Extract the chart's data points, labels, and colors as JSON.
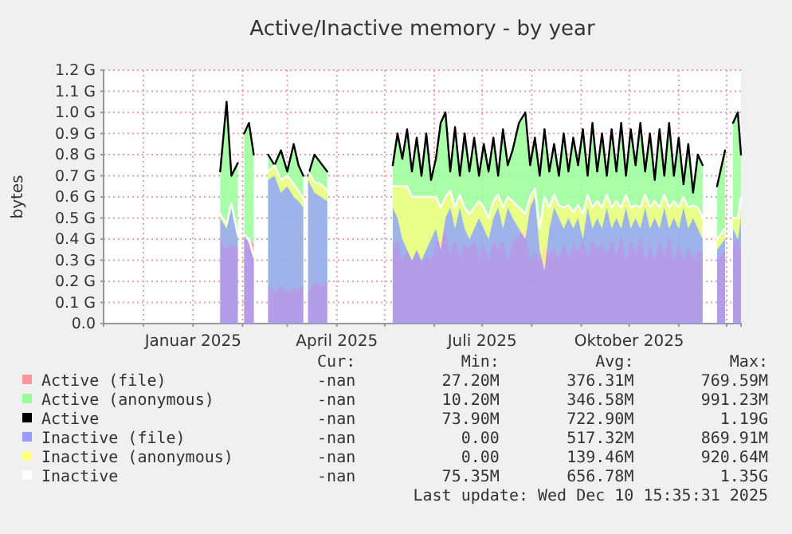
{
  "chart_data": [
    {
      "type": "area",
      "title": "Active/Inactive memory - by year",
      "ylabel": "bytes",
      "stacked": true,
      "grid": true,
      "legend": "bottom",
      "xlim": [
        "2024-11-06",
        "2025-12-10"
      ],
      "xticks": [
        {
          "value": "2024-12-01",
          "label": null
        },
        {
          "value": "2025-01-01",
          "label": "Januar 2025"
        },
        {
          "value": "2025-02-01",
          "label": null
        },
        {
          "value": "2025-03-01",
          "label": null
        },
        {
          "value": "2025-04-01",
          "label": "April 2025"
        },
        {
          "value": "2025-05-01",
          "label": null
        },
        {
          "value": "2025-06-01",
          "label": null
        },
        {
          "value": "2025-07-01",
          "label": "Juli 2025"
        },
        {
          "value": "2025-08-01",
          "label": null
        },
        {
          "value": "2025-09-01",
          "label": null
        },
        {
          "value": "2025-10-01",
          "label": "Oktober 2025"
        },
        {
          "value": "2025-11-01",
          "label": null
        },
        {
          "value": "2025-12-01",
          "label": null
        }
      ],
      "ylim": [
        0,
        1.2
      ],
      "yticks": [
        {
          "value": 0,
          "label": "0.0"
        },
        {
          "value": 0.1,
          "label": "0.1 G"
        },
        {
          "value": 0.2,
          "label": "0.2 G"
        },
        {
          "value": 0.3,
          "label": "0.3 G"
        },
        {
          "value": 0.4,
          "label": "0.4 G"
        },
        {
          "value": 0.5,
          "label": "0.5 G"
        },
        {
          "value": 0.6,
          "label": "0.6 G"
        },
        {
          "value": 0.7,
          "label": "0.7 G"
        },
        {
          "value": 0.8,
          "label": "0.8 G"
        },
        {
          "value": 0.9,
          "label": "0.9 G"
        },
        {
          "value": 1.0,
          "label": "1.0 G"
        },
        {
          "value": 1.1,
          "label": "1.1 G"
        },
        {
          "value": 1.2,
          "label": "1.2 G"
        }
      ],
      "x": [
        "2025-01-18",
        "2025-01-22",
        "2025-01-25",
        "2025-01-29",
        "2025-01-31",
        "2025-02-02",
        "2025-02-05",
        "2025-02-08",
        "2025-02-12",
        "2025-02-17",
        "2025-02-21",
        "2025-02-25",
        "2025-03-01",
        "2025-03-05",
        "2025-03-08",
        "2025-03-11",
        "2025-03-12",
        "2025-03-14",
        "2025-03-18",
        "2025-03-22",
        "2025-03-26",
        "2025-03-28",
        "2025-05-06",
        "2025-05-09",
        "2025-05-12",
        "2025-05-15",
        "2025-05-18",
        "2025-05-21",
        "2025-05-24",
        "2025-05-27",
        "2025-05-30",
        "2025-06-02",
        "2025-06-05",
        "2025-06-08",
        "2025-06-11",
        "2025-06-14",
        "2025-06-17",
        "2025-06-20",
        "2025-06-23",
        "2025-06-26",
        "2025-06-29",
        "2025-07-02",
        "2025-07-05",
        "2025-07-08",
        "2025-07-11",
        "2025-07-14",
        "2025-07-17",
        "2025-07-20",
        "2025-07-24",
        "2025-07-28",
        "2025-07-31",
        "2025-08-03",
        "2025-08-06",
        "2025-08-09",
        "2025-08-12",
        "2025-08-15",
        "2025-08-18",
        "2025-08-21",
        "2025-08-24",
        "2025-08-27",
        "2025-08-30",
        "2025-09-02",
        "2025-09-05",
        "2025-09-08",
        "2025-09-11",
        "2025-09-14",
        "2025-09-17",
        "2025-09-20",
        "2025-09-23",
        "2025-09-26",
        "2025-09-29",
        "2025-10-02",
        "2025-10-05",
        "2025-10-08",
        "2025-10-11",
        "2025-10-14",
        "2025-10-17",
        "2025-10-20",
        "2025-10-23",
        "2025-10-26",
        "2025-10-29",
        "2025-11-01",
        "2025-11-04",
        "2025-11-07",
        "2025-11-10",
        "2025-11-13",
        "2025-11-16",
        "2025-11-20",
        "2025-11-25",
        "2025-11-30",
        "2025-12-03",
        "2025-12-05",
        "2025-12-08",
        "2025-12-10"
      ],
      "series": [
        {
          "name": "Active (file)",
          "color": "#ff9999",
          "values": [
            0.4,
            0.35,
            0.38,
            0.36,
            null,
            0.4,
            0.4,
            0.38,
            null,
            0.18,
            0.15,
            0.18,
            0.15,
            0.17,
            0.16,
            0.18,
            null,
            0.15,
            0.2,
            0.18,
            0.2,
            null,
            0.35,
            0.4,
            0.3,
            0.35,
            0.3,
            0.35,
            0.28,
            0.33,
            0.3,
            0.38,
            0.4,
            0.45,
            0.33,
            0.4,
            0.32,
            0.38,
            0.35,
            0.4,
            0.32,
            0.38,
            0.3,
            0.4,
            0.35,
            0.4,
            0.3,
            0.38,
            0.42,
            0.45,
            0.3,
            0.35,
            0.3,
            0.38,
            0.32,
            0.36,
            0.3,
            0.38,
            0.32,
            0.38,
            0.34,
            0.4,
            0.32,
            0.4,
            0.35,
            0.38,
            0.33,
            0.4,
            0.32,
            0.42,
            0.3,
            0.4,
            0.33,
            0.42,
            0.3,
            0.38,
            0.3,
            0.4,
            0.32,
            0.42,
            0.3,
            0.38,
            0.3,
            0.36,
            0.3,
            0.35,
            0.33,
            null,
            0.3,
            0.35,
            null,
            0.38,
            0.4,
            0.35
          ]
        },
        {
          "name": "Active (anonymous)",
          "color": "#99ff99",
          "values": [
            0.32,
            0.7,
            0.32,
            0.4,
            null,
            0.5,
            0.55,
            0.42,
            null,
            0.62,
            0.6,
            0.64,
            0.57,
            0.68,
            0.59,
            0.52,
            null,
            0.55,
            0.6,
            0.58,
            0.52,
            null,
            0.4,
            0.5,
            0.48,
            0.57,
            0.42,
            0.53,
            0.42,
            0.57,
            0.38,
            0.4,
            0.55,
            0.55,
            0.39,
            0.53,
            0.38,
            0.52,
            0.37,
            0.48,
            0.38,
            0.47,
            0.42,
            0.48,
            0.35,
            0.52,
            0.45,
            0.44,
            0.53,
            0.55,
            0.45,
            0.53,
            0.4,
            0.54,
            0.4,
            0.49,
            0.4,
            0.52,
            0.4,
            0.5,
            0.41,
            0.52,
            0.38,
            0.55,
            0.37,
            0.52,
            0.37,
            0.52,
            0.4,
            0.53,
            0.4,
            0.52,
            0.42,
            0.53,
            0.42,
            0.52,
            0.38,
            0.52,
            0.38,
            0.53,
            0.4,
            0.5,
            0.36,
            0.49,
            0.32,
            0.45,
            0.42,
            null,
            0.35,
            0.47,
            null,
            0.57,
            0.6,
            0.45
          ]
        }
      ],
      "annotations": [
        "Cur:           Min:          Avg:          Max:",
        "-nan         27.20M       376.31M       769.59M",
        "-nan         10.20M       346.58M       991.23M"
      ]
    },
    {
      "type": "line",
      "tick_labels": false,
      "legend": "bottom",
      "xlim": [
        "2024-11-06",
        "2025-12-10"
      ],
      "ylim": [
        0,
        1.2
      ],
      "x": [
        "2025-01-18",
        "2025-01-22",
        "2025-01-25",
        "2025-01-29",
        "2025-01-31",
        "2025-02-02",
        "2025-02-05",
        "2025-02-08",
        "2025-02-12",
        "2025-02-17",
        "2025-02-21",
        "2025-02-25",
        "2025-03-01",
        "2025-03-05",
        "2025-03-08",
        "2025-03-11",
        "2025-03-12",
        "2025-03-14",
        "2025-03-18",
        "2025-03-22",
        "2025-03-26",
        "2025-03-28",
        "2025-05-06",
        "2025-05-09",
        "2025-05-12",
        "2025-05-15",
        "2025-05-18",
        "2025-05-21",
        "2025-05-24",
        "2025-05-27",
        "2025-05-30",
        "2025-06-02",
        "2025-06-05",
        "2025-06-08",
        "2025-06-11",
        "2025-06-14",
        "2025-06-17",
        "2025-06-20",
        "2025-06-23",
        "2025-06-26",
        "2025-06-29",
        "2025-07-02",
        "2025-07-05",
        "2025-07-08",
        "2025-07-11",
        "2025-07-14",
        "2025-07-17",
        "2025-07-20",
        "2025-07-24",
        "2025-07-28",
        "2025-07-31",
        "2025-08-03",
        "2025-08-06",
        "2025-08-09",
        "2025-08-12",
        "2025-08-15",
        "2025-08-18",
        "2025-08-21",
        "2025-08-24",
        "2025-08-27",
        "2025-08-30",
        "2025-09-02",
        "2025-09-05",
        "2025-09-08",
        "2025-09-11",
        "2025-09-14",
        "2025-09-17",
        "2025-09-20",
        "2025-09-23",
        "2025-09-26",
        "2025-09-29",
        "2025-10-02",
        "2025-10-05",
        "2025-10-08",
        "2025-10-11",
        "2025-10-14",
        "2025-10-17",
        "2025-10-20",
        "2025-10-23",
        "2025-10-26",
        "2025-10-29",
        "2025-11-01",
        "2025-11-04",
        "2025-11-07",
        "2025-11-10",
        "2025-11-13",
        "2025-11-16",
        "2025-11-20",
        "2025-11-25",
        "2025-11-30",
        "2025-12-03",
        "2025-12-05",
        "2025-12-08",
        "2025-12-10"
      ],
      "series": [
        {
          "name": "Active",
          "color": "#000000",
          "values": [
            0.72,
            1.05,
            0.7,
            0.76,
            null,
            0.9,
            0.95,
            0.8,
            null,
            0.8,
            0.75,
            0.82,
            0.72,
            0.85,
            0.75,
            0.7,
            null,
            0.7,
            0.8,
            0.76,
            0.72,
            null,
            0.75,
            0.9,
            0.78,
            0.92,
            0.72,
            0.88,
            0.7,
            0.9,
            0.68,
            0.78,
            0.95,
            1.0,
            0.72,
            0.93,
            0.7,
            0.9,
            0.72,
            0.88,
            0.7,
            0.85,
            0.72,
            0.88,
            0.7,
            0.92,
            0.75,
            0.82,
            0.95,
            1.0,
            0.75,
            0.88,
            0.7,
            0.92,
            0.72,
            0.85,
            0.7,
            0.9,
            0.72,
            0.88,
            0.75,
            0.92,
            0.7,
            0.95,
            0.72,
            0.9,
            0.7,
            0.92,
            0.72,
            0.95,
            0.7,
            0.92,
            0.75,
            0.95,
            0.72,
            0.9,
            0.68,
            0.92,
            0.7,
            0.95,
            0.7,
            0.88,
            0.66,
            0.85,
            0.62,
            0.8,
            0.75,
            null,
            0.65,
            0.82,
            null,
            0.95,
            1.0,
            0.8
          ]
        }
      ],
      "annotations": [
        "-nan         73.90M       722.90M         1.19G"
      ]
    },
    {
      "type": "area",
      "stacked": true,
      "tick_labels": false,
      "legend": "bottom",
      "xlim": [
        "2024-11-06",
        "2025-12-10"
      ],
      "ylim": [
        0,
        1.2
      ],
      "x": [
        "2025-01-18",
        "2025-01-22",
        "2025-01-25",
        "2025-01-29",
        "2025-01-31",
        "2025-02-02",
        "2025-02-05",
        "2025-02-08",
        "2025-02-12",
        "2025-02-17",
        "2025-02-21",
        "2025-02-25",
        "2025-03-01",
        "2025-03-05",
        "2025-03-08",
        "2025-03-11",
        "2025-03-12",
        "2025-03-14",
        "2025-03-18",
        "2025-03-22",
        "2025-03-26",
        "2025-03-28",
        "2025-05-06",
        "2025-05-09",
        "2025-05-12",
        "2025-05-15",
        "2025-05-18",
        "2025-05-21",
        "2025-05-24",
        "2025-05-27",
        "2025-05-30",
        "2025-06-02",
        "2025-06-05",
        "2025-06-08",
        "2025-06-11",
        "2025-06-14",
        "2025-06-17",
        "2025-06-20",
        "2025-06-23",
        "2025-06-26",
        "2025-06-29",
        "2025-07-02",
        "2025-07-05",
        "2025-07-08",
        "2025-07-11",
        "2025-07-14",
        "2025-07-17",
        "2025-07-20",
        "2025-07-24",
        "2025-07-28",
        "2025-07-31",
        "2025-08-03",
        "2025-08-06",
        "2025-08-09",
        "2025-08-12",
        "2025-08-15",
        "2025-08-18",
        "2025-08-21",
        "2025-08-24",
        "2025-08-27",
        "2025-08-30",
        "2025-09-02",
        "2025-09-05",
        "2025-09-08",
        "2025-09-11",
        "2025-09-14",
        "2025-09-17",
        "2025-09-20",
        "2025-09-23",
        "2025-09-26",
        "2025-09-29",
        "2025-10-02",
        "2025-10-05",
        "2025-10-08",
        "2025-10-11",
        "2025-10-14",
        "2025-10-17",
        "2025-10-20",
        "2025-10-23",
        "2025-10-26",
        "2025-10-29",
        "2025-11-01",
        "2025-11-04",
        "2025-11-07",
        "2025-11-10",
        "2025-11-13",
        "2025-11-16",
        "2025-11-20",
        "2025-11-25",
        "2025-11-30",
        "2025-12-03",
        "2025-12-05",
        "2025-12-08",
        "2025-12-10"
      ],
      "series": [
        {
          "name": "Inactive (file)",
          "color": "#9999ff",
          "values": [
            0.5,
            0.45,
            0.55,
            0.4,
            null,
            0.42,
            0.38,
            0.3,
            null,
            0.68,
            0.7,
            0.62,
            0.65,
            0.6,
            0.58,
            0.55,
            null,
            0.68,
            0.62,
            0.6,
            0.58,
            null,
            0.55,
            0.5,
            0.4,
            0.35,
            0.3,
            0.35,
            0.3,
            0.35,
            0.4,
            0.45,
            0.35,
            0.5,
            0.55,
            0.45,
            0.55,
            0.45,
            0.4,
            0.45,
            0.5,
            0.45,
            0.4,
            0.5,
            0.55,
            0.45,
            0.55,
            0.5,
            0.45,
            0.4,
            0.55,
            0.6,
            0.35,
            0.25,
            0.45,
            0.55,
            0.5,
            0.45,
            0.5,
            0.45,
            0.5,
            0.4,
            0.55,
            0.45,
            0.5,
            0.45,
            0.55,
            0.45,
            0.5,
            0.45,
            0.55,
            0.45,
            0.5,
            0.45,
            0.55,
            0.45,
            0.5,
            0.45,
            0.55,
            0.45,
            0.5,
            0.45,
            0.55,
            0.45,
            0.5,
            0.45,
            0.4,
            null,
            0.35,
            0.4,
            null,
            0.45,
            0.4,
            0.5
          ]
        },
        {
          "name": "Inactive (anonymous)",
          "color": "#ffff80",
          "values": [
            0.02,
            0.02,
            0.02,
            0.02,
            null,
            0.0,
            0.02,
            0.02,
            null,
            0.04,
            0.05,
            0.06,
            0.05,
            0.06,
            0.05,
            0.04,
            null,
            0.04,
            0.05,
            0.06,
            0.05,
            null,
            0.1,
            0.15,
            0.25,
            0.3,
            0.3,
            0.25,
            0.3,
            0.25,
            0.2,
            0.15,
            0.2,
            0.1,
            0.08,
            0.1,
            0.06,
            0.1,
            0.12,
            0.1,
            0.08,
            0.1,
            0.1,
            0.08,
            0.06,
            0.1,
            0.05,
            0.08,
            0.1,
            0.12,
            0.05,
            0.04,
            0.1,
            0.35,
            0.1,
            0.06,
            0.06,
            0.1,
            0.06,
            0.08,
            0.06,
            0.12,
            0.06,
            0.1,
            0.08,
            0.1,
            0.06,
            0.1,
            0.08,
            0.1,
            0.06,
            0.1,
            0.06,
            0.1,
            0.06,
            0.1,
            0.08,
            0.1,
            0.06,
            0.1,
            0.08,
            0.1,
            0.05,
            0.1,
            0.06,
            0.1,
            0.1,
            null,
            0.05,
            0.05,
            null,
            0.05,
            0.1,
            0.1
          ]
        }
      ],
      "annotations": [
        "-nan           0.00       517.32M       869.91M",
        "-nan           0.00       139.46M       920.64M"
      ]
    },
    {
      "type": "line",
      "tick_labels": false,
      "legend": "bottom",
      "xlim": [
        "2024-11-06",
        "2025-12-10"
      ],
      "ylim": [
        0,
        1.2
      ],
      "x": [
        "2025-01-18",
        "2025-01-22",
        "2025-01-25",
        "2025-01-29",
        "2025-01-31",
        "2025-02-02",
        "2025-02-05",
        "2025-02-08",
        "2025-02-12",
        "2025-02-17",
        "2025-02-21",
        "2025-02-25",
        "2025-03-01",
        "2025-03-05",
        "2025-03-08",
        "2025-03-11",
        "2025-03-12",
        "2025-03-14",
        "2025-03-18",
        "2025-03-22",
        "2025-03-26",
        "2025-03-28",
        "2025-05-06",
        "2025-05-09",
        "2025-05-12",
        "2025-05-15",
        "2025-05-18",
        "2025-05-21",
        "2025-05-24",
        "2025-05-27",
        "2025-05-30",
        "2025-06-02",
        "2025-06-05",
        "2025-06-08",
        "2025-06-11",
        "2025-06-14",
        "2025-06-17",
        "2025-06-20",
        "2025-06-23",
        "2025-06-26",
        "2025-06-29",
        "2025-07-02",
        "2025-07-05",
        "2025-07-08",
        "2025-07-11",
        "2025-07-14",
        "2025-07-17",
        "2025-07-20",
        "2025-07-24",
        "2025-07-28",
        "2025-07-31",
        "2025-08-03",
        "2025-08-06",
        "2025-08-09",
        "2025-08-12",
        "2025-08-15",
        "2025-08-18",
        "2025-08-21",
        "2025-08-24",
        "2025-08-27",
        "2025-08-30",
        "2025-09-02",
        "2025-09-05",
        "2025-09-08",
        "2025-09-11",
        "2025-09-14",
        "2025-09-17",
        "2025-09-20",
        "2025-09-23",
        "2025-09-26",
        "2025-09-29",
        "2025-10-02",
        "2025-10-05",
        "2025-10-08",
        "2025-10-11",
        "2025-10-14",
        "2025-10-17",
        "2025-10-20",
        "2025-10-23",
        "2025-10-26",
        "2025-10-29",
        "2025-11-01",
        "2025-11-04",
        "2025-11-07",
        "2025-11-10",
        "2025-11-13",
        "2025-11-16",
        "2025-11-20",
        "2025-11-25",
        "2025-11-30",
        "2025-12-03",
        "2025-12-05",
        "2025-12-08",
        "2025-12-10"
      ],
      "series": [
        {
          "name": "Inactive",
          "color": "#ffffff",
          "values": [
            0.52,
            0.47,
            0.57,
            0.42,
            null,
            0.42,
            0.4,
            0.32,
            null,
            0.72,
            0.75,
            0.68,
            0.7,
            0.66,
            0.63,
            0.59,
            null,
            0.72,
            0.67,
            0.66,
            0.63,
            null,
            0.65,
            0.65,
            0.65,
            0.65,
            0.6,
            0.6,
            0.6,
            0.6,
            0.6,
            0.6,
            0.55,
            0.6,
            0.63,
            0.55,
            0.61,
            0.55,
            0.52,
            0.55,
            0.58,
            0.55,
            0.5,
            0.58,
            0.61,
            0.55,
            0.6,
            0.58,
            0.55,
            0.52,
            0.6,
            0.64,
            0.45,
            0.6,
            0.55,
            0.61,
            0.56,
            0.55,
            0.56,
            0.53,
            0.56,
            0.52,
            0.61,
            0.55,
            0.58,
            0.55,
            0.61,
            0.55,
            0.58,
            0.55,
            0.61,
            0.55,
            0.56,
            0.55,
            0.61,
            0.55,
            0.58,
            0.55,
            0.61,
            0.55,
            0.58,
            0.55,
            0.6,
            0.55,
            0.56,
            0.55,
            0.5,
            null,
            0.4,
            0.45,
            null,
            0.5,
            0.5,
            0.6
          ]
        }
      ],
      "annotations": [
        "-nan         75.35M       656.78M         1.35G",
        "Last update: Wed Dec 10 15:35:31 2025"
      ]
    }
  ]
}
